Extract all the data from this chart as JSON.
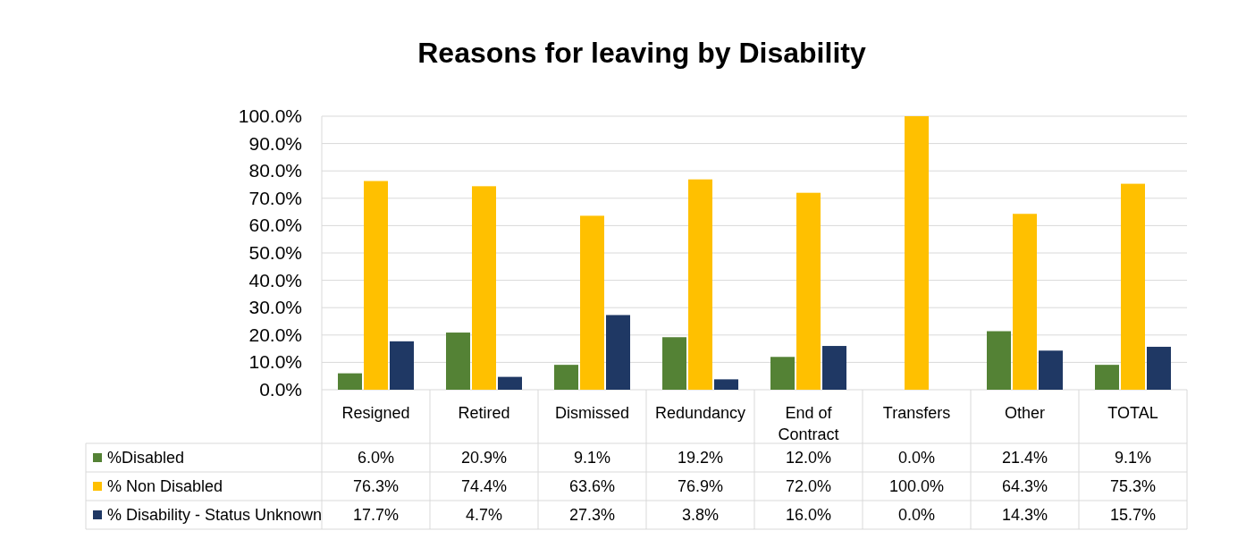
{
  "chart_data": {
    "type": "bar",
    "title": "Reasons for leaving by Disability",
    "categories": [
      "Resigned",
      "Retired",
      "Dismissed",
      "Redundancy",
      "End of Contract",
      "Transfers",
      "Other",
      "TOTAL"
    ],
    "series": [
      {
        "name": "%Disabled",
        "color": "#548235",
        "values": [
          6.0,
          20.9,
          9.1,
          19.2,
          12.0,
          0.0,
          21.4,
          9.1
        ],
        "value_labels": [
          "6.0%",
          "20.9%",
          "9.1%",
          "19.2%",
          "12.0%",
          "0.0%",
          "21.4%",
          "9.1%"
        ]
      },
      {
        "name": "% Non Disabled",
        "color": "#ffc000",
        "values": [
          76.3,
          74.4,
          63.6,
          76.9,
          72.0,
          100.0,
          64.3,
          75.3
        ],
        "value_labels": [
          "76.3%",
          "74.4%",
          "63.6%",
          "76.9%",
          "72.0%",
          "100.0%",
          "64.3%",
          "75.3%"
        ]
      },
      {
        "name": "% Disability - Status Unknown",
        "color": "#1f3864",
        "values": [
          17.7,
          4.7,
          27.3,
          3.8,
          16.0,
          0.0,
          14.3,
          15.7
        ],
        "value_labels": [
          "17.7%",
          "4.7%",
          "27.3%",
          "3.8%",
          "16.0%",
          "0.0%",
          "14.3%",
          "15.7%"
        ]
      }
    ],
    "ylim": [
      0,
      100
    ],
    "yticks": [
      {
        "value": 0,
        "label": "0.0%"
      },
      {
        "value": 10,
        "label": "10.0%"
      },
      {
        "value": 20,
        "label": "20.0%"
      },
      {
        "value": 30,
        "label": "30.0%"
      },
      {
        "value": 40,
        "label": "40.0%"
      },
      {
        "value": 50,
        "label": "50.0%"
      },
      {
        "value": 60,
        "label": "60.0%"
      },
      {
        "value": 70,
        "label": "70.0%"
      },
      {
        "value": 80,
        "label": "80.0%"
      },
      {
        "value": 90,
        "label": "90.0%"
      },
      {
        "value": 100,
        "label": "100.0%"
      }
    ],
    "grid": "y",
    "legend": "bottom"
  }
}
